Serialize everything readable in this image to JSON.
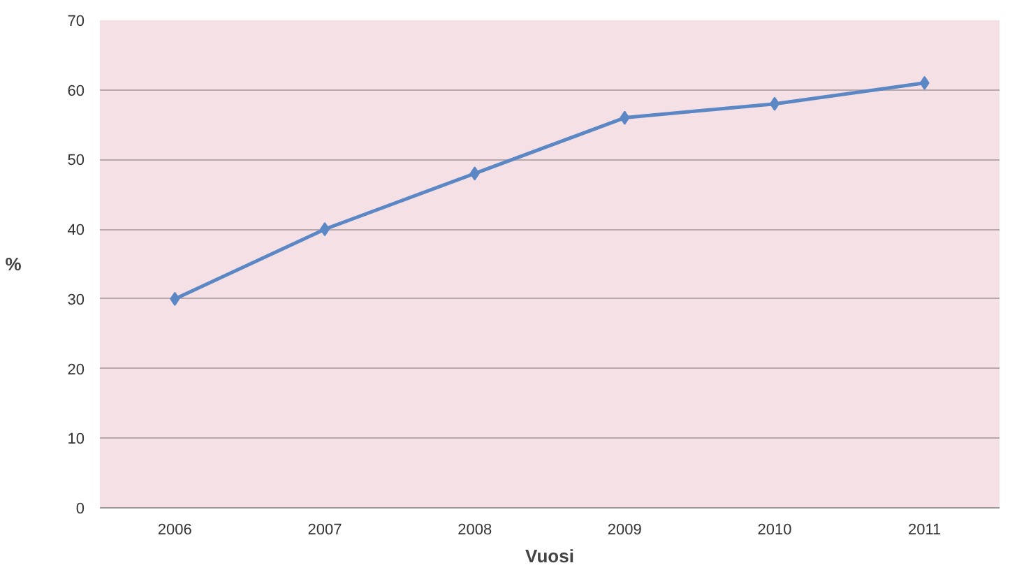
{
  "chart_data": {
    "type": "line",
    "xlabel": "Vuosi",
    "ylabel": "%",
    "categories": [
      "2006",
      "2007",
      "2008",
      "2009",
      "2010",
      "2011"
    ],
    "series": [
      {
        "color": "#5b87c5",
        "values": [
          30,
          40,
          48,
          56,
          58,
          61
        ]
      }
    ],
    "ylim": [
      0,
      70
    ],
    "yticks": [
      0,
      10,
      20,
      30,
      40,
      50,
      60,
      70
    ],
    "grid": "y",
    "marker": "diamond",
    "line_style": "solid"
  }
}
